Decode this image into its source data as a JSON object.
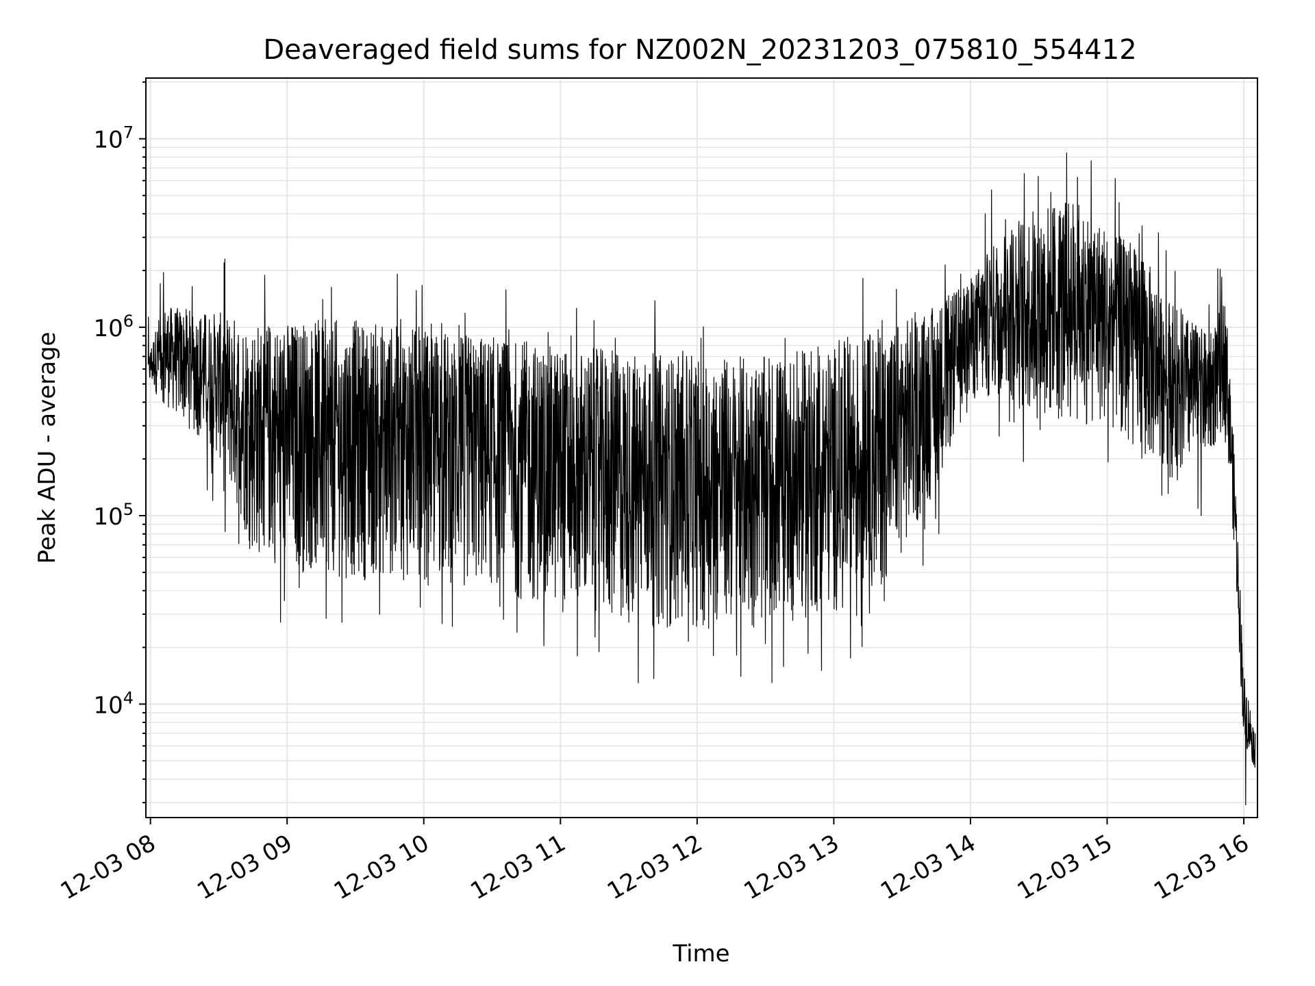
{
  "chart_data": {
    "type": "line",
    "title": "Deaveraged field sums for NZ002N_20231203_075810_554412",
    "xlabel": "Time",
    "ylabel": "Peak ADU - average",
    "x_ticks": [
      "12-03 08",
      "12-03 09",
      "12-03 10",
      "12-03 11",
      "12-03 12",
      "12-03 13",
      "12-03 14",
      "12-03 15",
      "12-03 16"
    ],
    "x_range": [
      "2023-12-03 07:58",
      "2023-12-03 16:06"
    ],
    "y_scale": "log",
    "y_range": [
      2500,
      21000000
    ],
    "y_ticks": [
      {
        "value": 10000,
        "mantissa": "10",
        "exponent": "4"
      },
      {
        "value": 100000,
        "mantissa": "10",
        "exponent": "5"
      },
      {
        "value": 1000000,
        "mantissa": "10",
        "exponent": "6"
      },
      {
        "value": 10000000,
        "mantissa": "10",
        "exponent": "7"
      }
    ],
    "grid": true,
    "line_color": "#000000",
    "grid_color": "#e6e6e6",
    "envelope": {
      "x": [
        "2023-12-03 07:59",
        "2023-12-03 08:05",
        "2023-12-03 08:30",
        "2023-12-03 08:45",
        "2023-12-03 09:00",
        "2023-12-03 09:30",
        "2023-12-03 10:00",
        "2023-12-03 10:30",
        "2023-12-03 11:00",
        "2023-12-03 11:30",
        "2023-12-03 12:00",
        "2023-12-03 12:30",
        "2023-12-03 13:00",
        "2023-12-03 13:20",
        "2023-12-03 13:40",
        "2023-12-03 14:00",
        "2023-12-03 14:15",
        "2023-12-03 14:30",
        "2023-12-03 14:45",
        "2023-12-03 15:00",
        "2023-12-03 15:15",
        "2023-12-03 15:30",
        "2023-12-03 15:45",
        "2023-12-03 15:52",
        "2023-12-03 15:56",
        "2023-12-03 16:00",
        "2023-12-03 16:05"
      ],
      "high": [
        700000,
        1300000,
        1200000,
        1100000,
        1100000,
        1100000,
        1000000,
        900000,
        800000,
        750000,
        700000,
        700000,
        800000,
        1000000,
        1200000,
        1800000,
        3500000,
        4500000,
        5000000,
        3500000,
        2500000,
        1300000,
        900000,
        1500000,
        200000,
        15000,
        7000
      ],
      "low": [
        500000,
        400000,
        200000,
        60000,
        50000,
        45000,
        45000,
        40000,
        30000,
        25000,
        25000,
        25000,
        30000,
        40000,
        100000,
        400000,
        400000,
        300000,
        300000,
        300000,
        200000,
        150000,
        200000,
        300000,
        60000,
        6000,
        4500
      ]
    }
  }
}
